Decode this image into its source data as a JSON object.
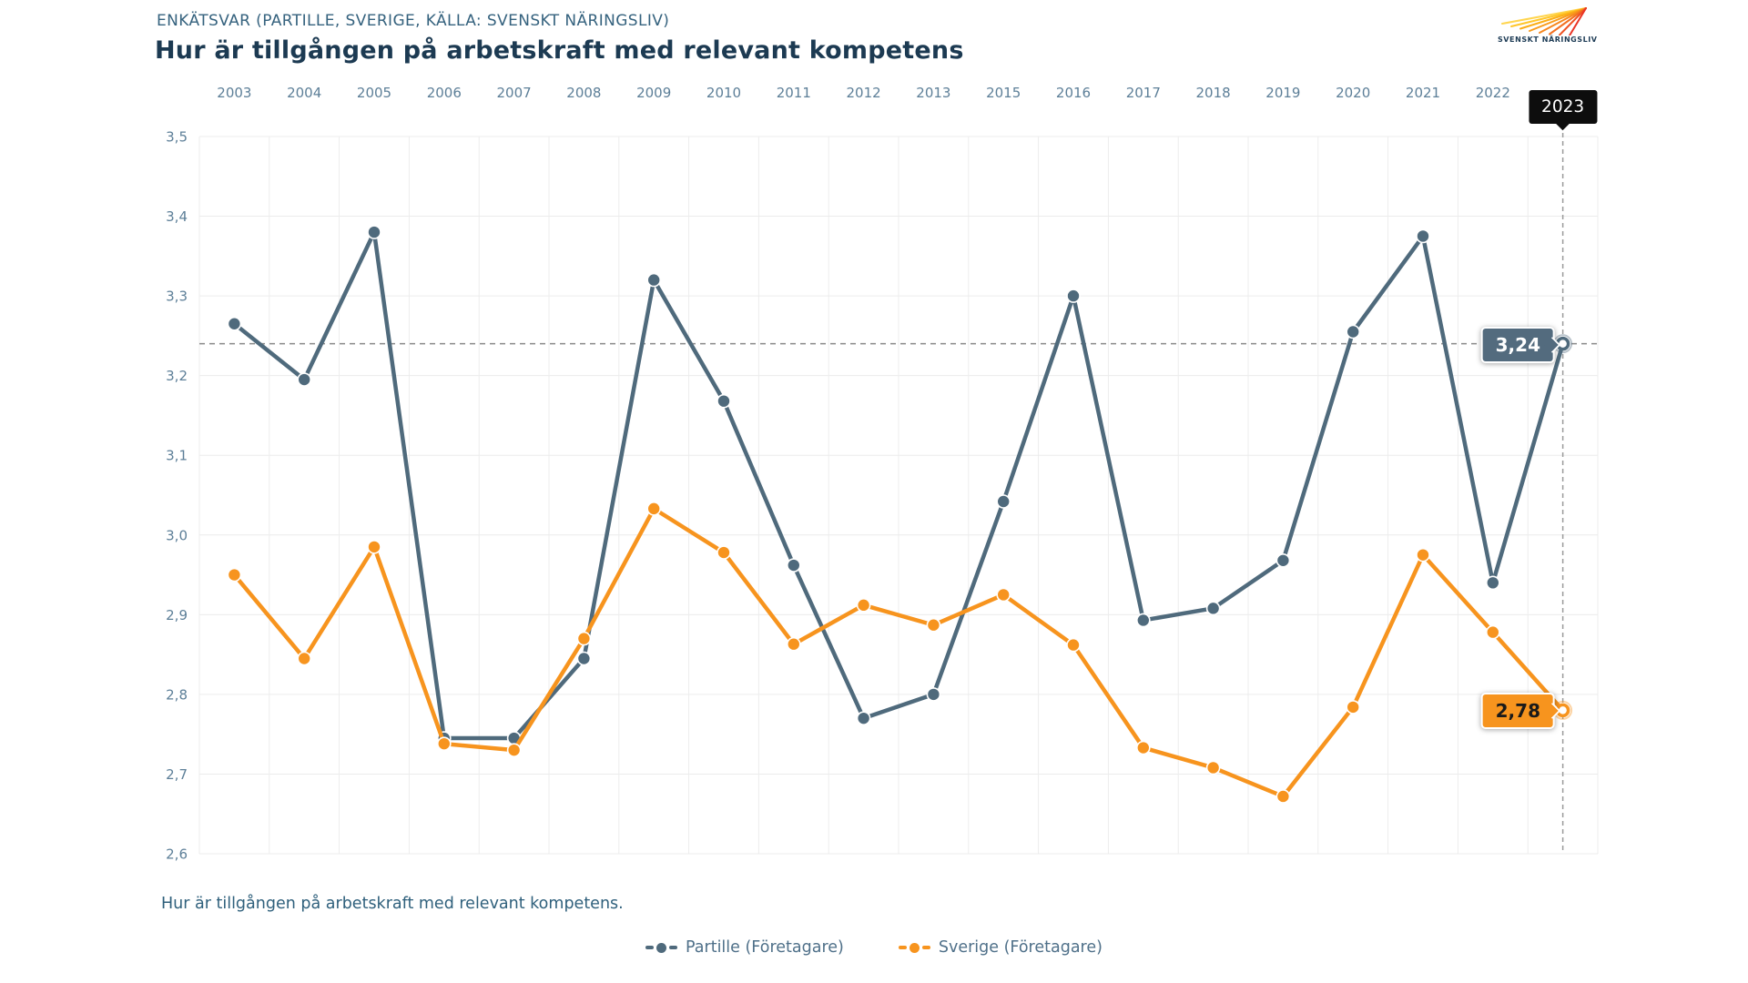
{
  "header": {
    "eyebrow": "ENKÄTSVAR (PARTILLE, SVERIGE, KÄLLA: SVENSKT NÄRINGSLIV)",
    "title": "Hur är tillgången på arbetskraft med relevant kompetens",
    "logo_text": "SVENSKT NÄRINGSLIV"
  },
  "chart_data": {
    "type": "line",
    "title": "Hur är tillgången på arbetskraft med relevant kompetens",
    "categories": [
      "2003",
      "2004",
      "2005",
      "2006",
      "2007",
      "2008",
      "2009",
      "2010",
      "2011",
      "2012",
      "2013",
      "2015",
      "2016",
      "2017",
      "2018",
      "2019",
      "2020",
      "2021",
      "2022",
      "2023"
    ],
    "series": [
      {
        "name": "Partille (Företagare)",
        "color": "#4F6A7C",
        "values": [
          3.265,
          3.195,
          3.38,
          2.745,
          2.745,
          2.845,
          3.32,
          3.168,
          2.962,
          2.77,
          2.8,
          3.042,
          3.3,
          2.893,
          2.908,
          2.968,
          3.255,
          3.375,
          2.94,
          3.24
        ]
      },
      {
        "name": "Sverige (Företagare)",
        "color": "#F7941E",
        "values": [
          2.95,
          2.845,
          2.985,
          2.738,
          2.73,
          2.87,
          3.033,
          2.978,
          2.863,
          2.912,
          2.887,
          2.925,
          2.862,
          2.733,
          2.708,
          2.672,
          2.784,
          2.975,
          2.878,
          2.78
        ]
      }
    ],
    "ylim": [
      2.6,
      3.5
    ],
    "yticks": [
      {
        "value": 3.5,
        "label": "3,5"
      },
      {
        "value": 3.4,
        "label": "3,4"
      },
      {
        "value": 3.3,
        "label": "3,3"
      },
      {
        "value": 3.2,
        "label": "3,2"
      },
      {
        "value": 3.1,
        "label": "3,1"
      },
      {
        "value": 3.0,
        "label": "3,0"
      },
      {
        "value": 2.9,
        "label": "2,9"
      },
      {
        "value": 2.8,
        "label": "2,8"
      },
      {
        "value": 2.7,
        "label": "2,7"
      },
      {
        "value": 2.6,
        "label": "2,6"
      }
    ],
    "grid": true,
    "legend_position": "bottom",
    "highlight": {
      "category": "2023",
      "index": 19
    },
    "end_labels": {
      "partille": "3,24",
      "sverige": "2,78"
    },
    "reference_line_value": 3.24
  },
  "footnote": "Hur är tillgången på arbetskraft med relevant kompetens."
}
